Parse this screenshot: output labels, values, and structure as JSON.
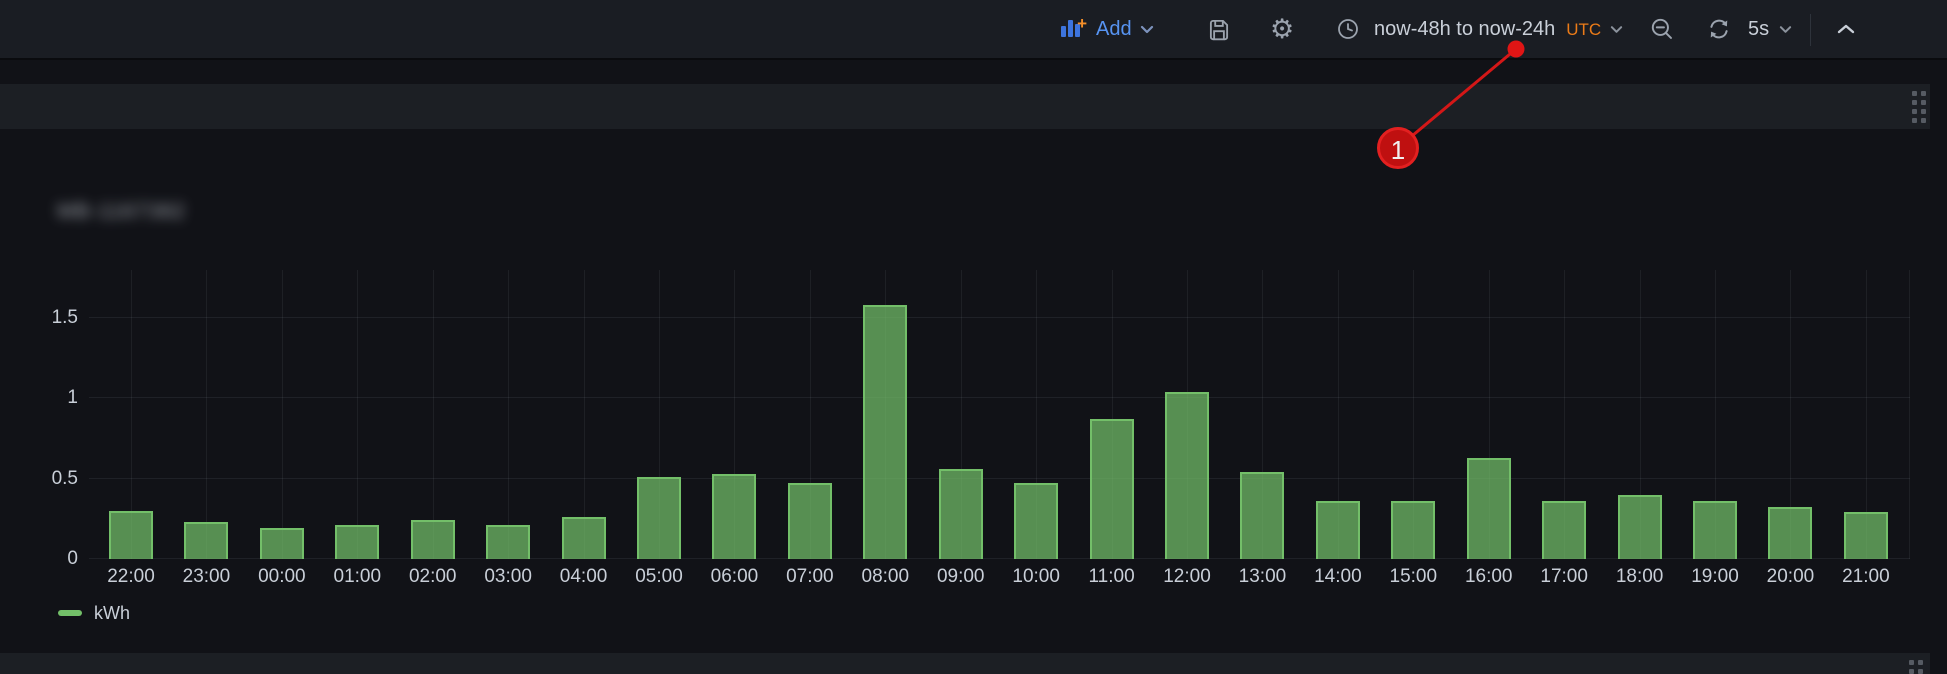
{
  "toolbar": {
    "add": {
      "label": "Add",
      "icon": "bar-chart-plus-icon"
    },
    "time_picker": {
      "icon": "clock-icon",
      "range": "now-48h to now-24h",
      "timezone": "UTC"
    },
    "refresh_interval": "5s",
    "icons": {
      "save": "save-icon",
      "settings": "gear-icon",
      "zoom_out": "zoom-out-icon",
      "refresh": "refresh-icon",
      "collapse": "chevron-up-icon"
    }
  },
  "panel": {
    "title_blurred": true,
    "title_mask_text": "MB-1167382"
  },
  "legend": {
    "label": "kWh",
    "swatch_color": "#73bf69"
  },
  "annotation": {
    "number": "1",
    "color": "#d41717",
    "points_to": "time-range-picker"
  },
  "colors": {
    "bar_fill": "rgba(115,191,105,0.72)",
    "bar_border": "#73bf69",
    "accent_blue": "#5794f2",
    "accent_orange": "#eb7b18",
    "annotation_red": "#d41717",
    "toolbar_bg": "#1a1d23",
    "page_bg": "#111217"
  },
  "chart_data": {
    "type": "bar",
    "title": "(blurred panel title)",
    "unit": "kWh",
    "categories": [
      "22:00",
      "23:00",
      "00:00",
      "01:00",
      "02:00",
      "03:00",
      "04:00",
      "05:00",
      "06:00",
      "07:00",
      "08:00",
      "09:00",
      "10:00",
      "11:00",
      "12:00",
      "13:00",
      "14:00",
      "15:00",
      "16:00",
      "17:00",
      "18:00",
      "19:00",
      "20:00",
      "21:00"
    ],
    "series": [
      {
        "name": "kWh",
        "values": [
          0.3,
          0.23,
          0.19,
          0.21,
          0.24,
          0.21,
          0.26,
          0.51,
          0.53,
          0.47,
          1.58,
          0.56,
          0.47,
          0.87,
          1.04,
          0.54,
          0.36,
          0.36,
          0.63,
          0.36,
          0.4,
          0.36,
          0.32,
          0.29
        ]
      }
    ],
    "yticks": [
      0,
      0.5,
      1,
      1.5
    ],
    "ylim": [
      0,
      1.8
    ],
    "xlabel": "",
    "ylabel": "",
    "grid": true,
    "legend_position": "bottom-left"
  }
}
